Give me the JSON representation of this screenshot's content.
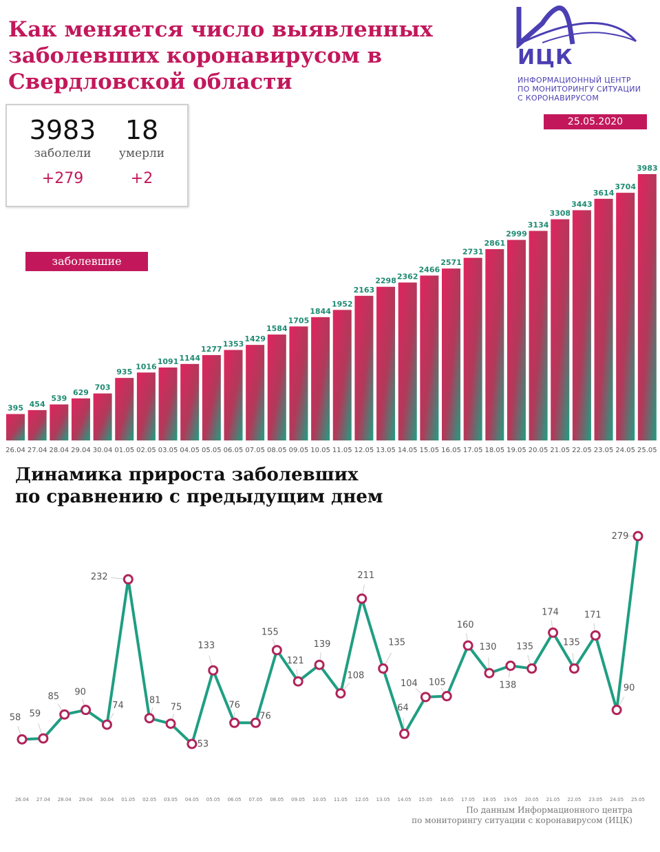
{
  "header": {
    "title_lines": [
      "Как меняется число выявленных",
      "заболевших коронавирусом в",
      "Свердловской области"
    ]
  },
  "stats": {
    "cases": {
      "value": "3983",
      "label": "заболели",
      "delta": "+279"
    },
    "deaths": {
      "value": "18",
      "label": "умерли",
      "delta": "+2"
    }
  },
  "logo": {
    "abbr": "ИЦК",
    "lines": [
      "ИНФОРМАЦИОННЫЙ ЦЕНТР",
      "ПО МОНИТОРИНГУ СИТУАЦИИ",
      "С КОРОНАВИРУСОМ"
    ],
    "icon": "mountain-logo-icon"
  },
  "date": "25.05.2020",
  "colors": {
    "accent": "#c2185b",
    "teal": "#1f8a72",
    "logo": "#4b3fb3"
  },
  "chart_data": [
    {
      "type": "bar",
      "title": "",
      "legend": "заболевшие",
      "categories": [
        "26.04",
        "27.04",
        "28.04",
        "29.04",
        "30.04",
        "01.05",
        "02.05",
        "03.05",
        "04.05",
        "05.05",
        "06.05",
        "07.05",
        "08.05",
        "09.05",
        "10.05",
        "11.05",
        "12.05",
        "13.05",
        "14.05",
        "15.05",
        "16.05",
        "17.05",
        "18.05",
        "19.05",
        "20.05",
        "21.05",
        "22.05",
        "23.05",
        "24.05",
        "25.05"
      ],
      "values": [
        395,
        454,
        539,
        629,
        703,
        935,
        1016,
        1091,
        1144,
        1277,
        1353,
        1429,
        1584,
        1705,
        1844,
        1952,
        2163,
        2298,
        2362,
        2466,
        2571,
        2731,
        2861,
        2999,
        3134,
        3308,
        3443,
        3614,
        3704,
        3983
      ],
      "ylim": [
        0,
        3983
      ]
    },
    {
      "type": "line",
      "title": "Динамика прироста заболевших по сравнению с предыдущим днем",
      "title_lines": [
        "Динамика прироста заболевших",
        "по сравнению с предыдущим днем"
      ],
      "categories": [
        "26.04",
        "27.04",
        "28.04",
        "29.04",
        "30.04",
        "01.05",
        "02.05",
        "03.05",
        "04.05",
        "05.05",
        "06.05",
        "07.05",
        "08.05",
        "09.05",
        "10.05",
        "11.05",
        "12.05",
        "13.05",
        "14.05",
        "15.05",
        "16.05",
        "17.05",
        "18.05",
        "19.05",
        "20.05",
        "21.05",
        "22.05",
        "23.05",
        "24.05",
        "25.05"
      ],
      "values": [
        58,
        59,
        85,
        90,
        74,
        232,
        81,
        75,
        53,
        133,
        76,
        76,
        155,
        121,
        139,
        108,
        211,
        135,
        64,
        104,
        105,
        160,
        130,
        138,
        135,
        174,
        135,
        171,
        90,
        279
      ],
      "ylim": [
        40,
        285
      ]
    }
  ],
  "footer": {
    "lines": [
      "По данным Информационного центра",
      "по мониторингу ситуации с коронавирусом (ИЦК)"
    ]
  }
}
